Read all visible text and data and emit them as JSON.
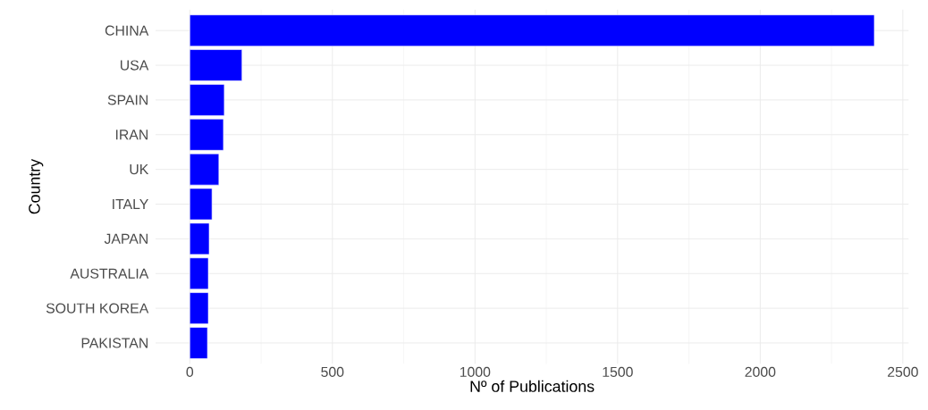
{
  "chart_data": {
    "type": "bar",
    "orientation": "horizontal",
    "xlabel": "Nº of Publications",
    "ylabel": "Country",
    "categories": [
      "CHINA",
      "USA",
      "SPAIN",
      "IRAN",
      "UK",
      "ITALY",
      "JAPAN",
      "AUSTRALIA",
      "SOUTH KOREA",
      "PAKISTAN"
    ],
    "values": [
      2400,
      183,
      121,
      118,
      102,
      78,
      68,
      65,
      65,
      62
    ],
    "color": "#0000ff",
    "xlim": [
      -120,
      2520
    ],
    "xticks": [
      0,
      500,
      1000,
      1500,
      2000,
      2500
    ],
    "grid": true
  }
}
